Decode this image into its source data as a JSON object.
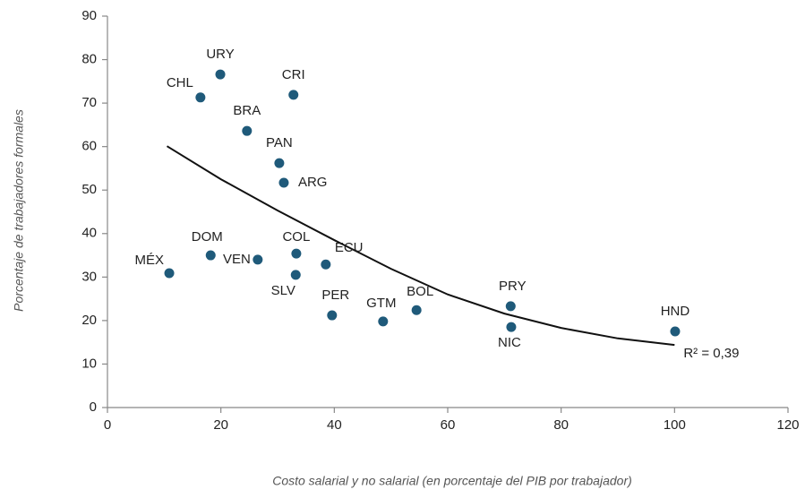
{
  "chart_data": {
    "type": "scatter",
    "x_label": "Costo salarial y no salarial (en porcentaje del PIB por trabajador)",
    "y_label": "Porcentaje de trabajadores formales",
    "categories": [
      "URY",
      "CHL",
      "CRI",
      "BRA",
      "PAN",
      "ARG",
      "DOM",
      "VEN",
      "COL",
      "ECU",
      "MÉX",
      "SLV",
      "PER",
      "GTM",
      "BOL",
      "PRY",
      "NIC",
      "HND"
    ],
    "x": [
      19.9,
      16.4,
      32.8,
      24.6,
      30.3,
      31.1,
      18.2,
      26.5,
      33.3,
      38.5,
      10.9,
      33.2,
      39.6,
      48.6,
      54.5,
      71.1,
      71.2,
      100.1
    ],
    "values": [
      76.6,
      71.3,
      71.9,
      63.6,
      56.2,
      51.7,
      35.0,
      34.0,
      35.4,
      32.9,
      30.9,
      30.5,
      21.2,
      19.8,
      22.4,
      23.3,
      18.5,
      17.5
    ],
    "color": "#1f5a7a",
    "trendline": {
      "x": [
        10.5,
        20,
        30,
        40,
        50,
        60,
        70,
        80,
        90,
        100
      ],
      "values": [
        60.1,
        52.5,
        45.3,
        38.5,
        31.9,
        26,
        21.6,
        18.3,
        15.9,
        14.4
      ],
      "color": "#111111",
      "label": "R² = 0,39"
    },
    "xlim": [
      0,
      120
    ],
    "xticks": [
      0,
      20,
      40,
      60,
      80,
      100,
      120
    ],
    "ylim": [
      0,
      90
    ],
    "yticks": [
      0,
      10,
      20,
      30,
      40,
      50,
      60,
      70,
      80,
      90
    ],
    "grid": false
  }
}
